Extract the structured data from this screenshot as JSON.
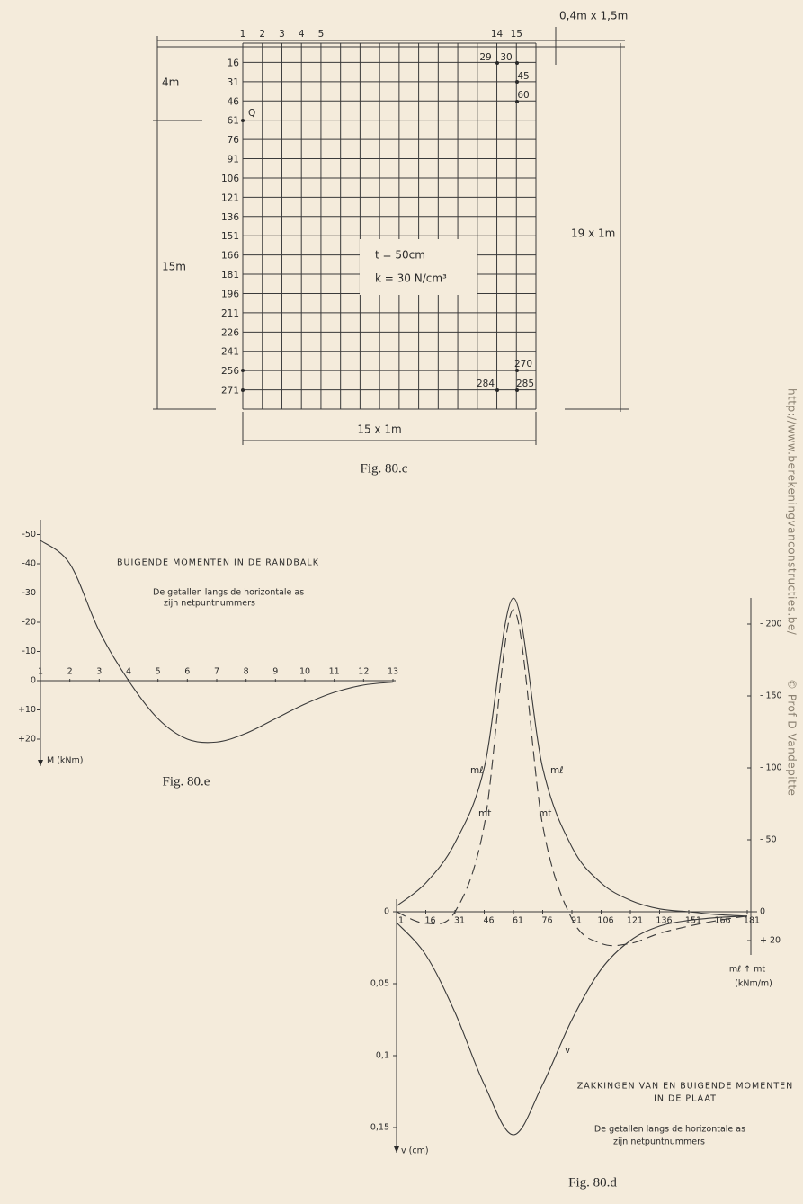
{
  "figure_c": {
    "column_labels": [
      "1",
      "2",
      "3",
      "4",
      "5",
      "14",
      "15"
    ],
    "row_labels": [
      "16",
      "31",
      "46",
      "61",
      "76",
      "91",
      "106",
      "121",
      "136",
      "151",
      "166",
      "181",
      "196",
      "211",
      "226",
      "241",
      "256",
      "271"
    ],
    "node_labels": [
      "29",
      "30",
      "45",
      "60",
      "270",
      "284",
      "285"
    ],
    "load_label": "Q",
    "slab_properties": [
      "t = 50cm",
      "k = 30 N/cm³"
    ],
    "dimensions": {
      "beam": "0,4m x 1,5m",
      "load_offset": "4m",
      "rest": "15m",
      "height": "19 x 1m",
      "width": "15 x 1m"
    },
    "caption": "Fig. 80.c"
  },
  "chart_data": [
    {
      "type": "line",
      "title": "BUIGENDE MOMENTEN IN DE RANDBALK",
      "notes": [
        "De getallen langs de horizontale as",
        "zijn netpuntnummers"
      ],
      "x": [
        1,
        2,
        3,
        4,
        5,
        6,
        7,
        8,
        9,
        10,
        11,
        12,
        13
      ],
      "values": [
        -48,
        -40,
        -17,
        0,
        13,
        20,
        21,
        18,
        13,
        8,
        4,
        1.5,
        0.5
      ],
      "color": "#3a3a3a",
      "xlim": [
        1,
        13
      ],
      "xticks": [
        1,
        2,
        3,
        4,
        5,
        6,
        7,
        8,
        9,
        10,
        11,
        12,
        13
      ],
      "ylim": [
        28,
        -55
      ],
      "yticks": [
        -50,
        -40,
        -30,
        -20,
        -10,
        0,
        {
          "value": 10,
          "label": "+10"
        },
        {
          "value": 20,
          "label": "+20"
        }
      ],
      "y_label": "M (kNm)",
      "grid": false,
      "caption": "Fig. 80.e"
    },
    {
      "type": "line",
      "title_lines": [
        "ZAKKINGEN VAN EN BUIGENDE MOMENTEN",
        "IN DE PLAAT"
      ],
      "notes": [
        "De getallen langs de horizontale as",
        "zijn netpuntnummers"
      ],
      "x": [
        1,
        16,
        31,
        46,
        61,
        76,
        91,
        106,
        121,
        136,
        151,
        166,
        181
      ],
      "xlim": [
        1,
        181
      ],
      "xticks": [
        1,
        16,
        31,
        46,
        61,
        76,
        91,
        106,
        121,
        136,
        151,
        166,
        181
      ],
      "ylim": [
        0.17,
        -0.01
      ],
      "yticks": [
        0,
        {
          "value": 0.05,
          "label": "0,05"
        },
        {
          "value": 0.1,
          "label": "0,1"
        },
        {
          "value": 0.15,
          "label": "0,15"
        }
      ],
      "y_label": "v (cm)",
      "y2lim": [
        40,
        -220
      ],
      "y2ticks": [
        {
          "value": -200,
          "label": "- 200"
        },
        {
          "value": -150,
          "label": "- 150"
        },
        {
          "value": -100,
          "label": "- 100"
        },
        {
          "value": -50,
          "label": "- 50"
        },
        0,
        {
          "value": 20,
          "label": "+ 20"
        }
      ],
      "y2_label": [
        "mℓ ↑ mt",
        "(kNm/m)"
      ],
      "series": [
        {
          "name": "mℓ",
          "color": "#3a3a3a",
          "axis": "y2",
          "dashed": false,
          "values": [
            -4,
            -20,
            -48,
            -100,
            -218,
            -100,
            -45,
            -20,
            -8,
            -2,
            0,
            2,
            3
          ]
        },
        {
          "name": "mt",
          "color": "#3a3a3a",
          "axis": "y2",
          "dashed": true,
          "values": [
            0,
            8,
            0,
            -60,
            -210,
            -60,
            5,
            22,
            22,
            15,
            10,
            6,
            3
          ]
        },
        {
          "name": "v",
          "color": "#3a3a3a",
          "axis": "y",
          "dashed": false,
          "values": [
            0.0075,
            0.03,
            0.07,
            0.12,
            0.155,
            0.12,
            0.075,
            0.04,
            0.02,
            0.01,
            0.006,
            0.004,
            0.003
          ]
        }
      ],
      "grid": false,
      "caption": "Fig. 80.d"
    }
  ],
  "watermark": [
    "http://www.berekeningvanconstructies.be/",
    "© Prof D Vandepitte"
  ]
}
